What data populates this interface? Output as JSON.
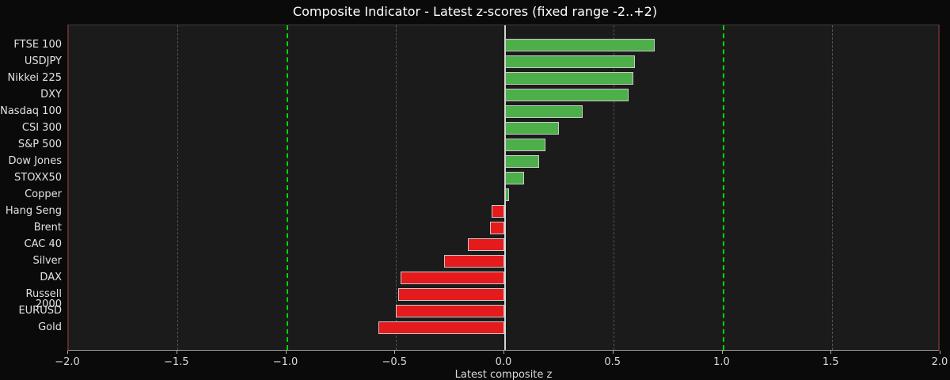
{
  "title": "Composite Indicator - Latest z-scores (fixed range -2..+2)",
  "chart_data": {
    "type": "bar",
    "orientation": "horizontal",
    "title": "Composite Indicator - Latest z-scores (fixed range -2..+2)",
    "xlabel": "Latest composite z",
    "ylabel": "",
    "xlim": [
      -2.0,
      2.0
    ],
    "xtick_values": [
      -2.0,
      -1.5,
      -1.0,
      -0.5,
      0.0,
      0.5,
      1.0,
      1.5,
      2.0
    ],
    "xtick_labels": [
      "−2.0",
      "−1.5",
      "−1.0",
      "−0.5",
      "0.0",
      "0.5",
      "1.0",
      "1.5",
      "2.0"
    ],
    "grid": "dashed vertical at 0.5 steps",
    "threshold_lines": [
      -1.0,
      1.0
    ],
    "zero_line": 0.0,
    "legend": "none",
    "categories": [
      "FTSE 100",
      "USDJPY",
      "Nikkei 225",
      "DXY",
      "Nasdaq 100",
      "CSI 300",
      "S&P 500",
      "Dow Jones",
      "STOXX50",
      "Copper",
      "Hang Seng",
      "Brent",
      "CAC 40",
      "Silver",
      "DAX",
      "Russell 2000",
      "EURUSD",
      "Gold"
    ],
    "values": [
      0.69,
      0.6,
      0.59,
      0.57,
      0.36,
      0.25,
      0.19,
      0.16,
      0.09,
      0.02,
      -0.06,
      -0.07,
      -0.17,
      -0.28,
      -0.48,
      -0.49,
      -0.5,
      -0.58
    ]
  },
  "colors": {
    "positive_bar": "#4daf4a",
    "negative_bar": "#e41a1c",
    "bar_edge": "#c9c9c9",
    "threshold_line": "#00d400",
    "gridline": "#555555",
    "zero_line": "#d4d4d4",
    "figure_background": "#0a0a0a",
    "axes_background": "#1b1b1b",
    "text": "#e2e2e2",
    "title_text": "#ffffff"
  }
}
